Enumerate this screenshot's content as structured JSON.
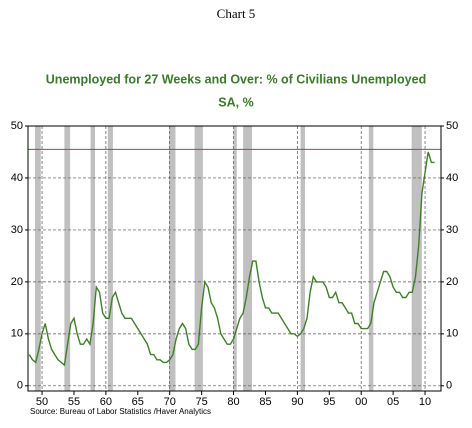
{
  "chart_data": {
    "type": "line",
    "header": "Chart 5",
    "title": "Unemployed for 27 Weeks and Over: % of Civilians Unemployed",
    "subtitle": "SA, %",
    "source": "Source:  Bureau of Labor Statistics /Haver Analytics",
    "x": [
      1948,
      1948.5,
      1949,
      1949.5,
      1950,
      1950.5,
      1951,
      1951.5,
      1952,
      1952.5,
      1953,
      1953.5,
      1954,
      1954.5,
      1955,
      1955.5,
      1956,
      1956.5,
      1957,
      1957.5,
      1958,
      1958.5,
      1959,
      1959.5,
      1960,
      1960.5,
      1961,
      1961.5,
      1962,
      1962.5,
      1963,
      1963.5,
      1964,
      1964.5,
      1965,
      1965.5,
      1966,
      1966.5,
      1967,
      1967.5,
      1968,
      1968.5,
      1969,
      1969.5,
      1970,
      1970.5,
      1971,
      1971.5,
      1972,
      1972.5,
      1973,
      1973.5,
      1974,
      1974.5,
      1975,
      1975.5,
      1976,
      1976.5,
      1977,
      1977.5,
      1978,
      1978.5,
      1979,
      1979.5,
      1980,
      1980.5,
      1981,
      1981.5,
      1982,
      1982.5,
      1983,
      1983.5,
      1984,
      1984.5,
      1985,
      1985.5,
      1986,
      1986.5,
      1987,
      1987.5,
      1988,
      1988.5,
      1989,
      1989.5,
      1990,
      1990.5,
      1991,
      1991.5,
      1992,
      1992.5,
      1993,
      1993.5,
      1994,
      1994.5,
      1995,
      1995.5,
      1996,
      1996.5,
      1997,
      1997.5,
      1998,
      1998.5,
      1999,
      1999.5,
      2000,
      2000.5,
      2001,
      2001.5,
      2002,
      2002.5,
      2003,
      2003.5,
      2004,
      2004.5,
      2005,
      2005.5,
      2006,
      2006.5,
      2007,
      2007.5,
      2008,
      2008.5,
      2009,
      2009.5,
      2010,
      2010.5,
      2011,
      2011.5
    ],
    "series": [
      {
        "name": "Unemployed for 27 Weeks and Over",
        "color": "#3f7f2a",
        "values": [
          6,
          5,
          4.5,
          7,
          10,
          12,
          9,
          7,
          6,
          5,
          4.5,
          4,
          8,
          12,
          13,
          10,
          8,
          8,
          9,
          8,
          12,
          19,
          18,
          14,
          13,
          13,
          17,
          18,
          16,
          14,
          13,
          13,
          13,
          12,
          11,
          10,
          9,
          8,
          6,
          6,
          5,
          5,
          4.5,
          4.5,
          5,
          6,
          9,
          11,
          12,
          11,
          8,
          7,
          7,
          8,
          15,
          20,
          19,
          16,
          15,
          13,
          10,
          9,
          8,
          8,
          9,
          11,
          13,
          14,
          17,
          21,
          24,
          24,
          20,
          17,
          15,
          15,
          14,
          14,
          14,
          13,
          12,
          11,
          10,
          10,
          9.5,
          10,
          11,
          13,
          18,
          21,
          20,
          20,
          20,
          19,
          17,
          17,
          18,
          16,
          16,
          15,
          14,
          14,
          12,
          12,
          11,
          11,
          11,
          12,
          16,
          18,
          20,
          22,
          22,
          21,
          19,
          18,
          18,
          17,
          17,
          18,
          18,
          21,
          27,
          37,
          41,
          45,
          43,
          43
        ]
      }
    ],
    "recessions": [
      [
        1948.9,
        1949.8
      ],
      [
        1953.5,
        1954.4
      ],
      [
        1957.6,
        1958.3
      ],
      [
        1960.3,
        1961.1
      ],
      [
        1969.9,
        1970.9
      ],
      [
        1973.9,
        1975.2
      ],
      [
        1980,
        1980.5
      ],
      [
        1981.5,
        1982.9
      ],
      [
        1990.5,
        1991.2
      ],
      [
        2001.2,
        2001.9
      ],
      [
        2007.9,
        2009.5
      ]
    ],
    "hline": 45.5,
    "xlim": [
      1947.8,
      2012.5
    ],
    "xticks": [
      {
        "value": 1950,
        "label": "50"
      },
      {
        "value": 1955,
        "label": "55"
      },
      {
        "value": 1960,
        "label": "60"
      },
      {
        "value": 1965,
        "label": "65"
      },
      {
        "value": 1970,
        "label": "70"
      },
      {
        "value": 1975,
        "label": "75"
      },
      {
        "value": 1980,
        "label": "80"
      },
      {
        "value": 1985,
        "label": "85"
      },
      {
        "value": 1990,
        "label": "90"
      },
      {
        "value": 1995,
        "label": "95"
      },
      {
        "value": 2000,
        "label": "00"
      },
      {
        "value": 2005,
        "label": "05"
      },
      {
        "value": 2010,
        "label": "10"
      }
    ],
    "grid_xticks": [
      1950,
      1960,
      1970,
      1980,
      1990,
      2000,
      2010
    ],
    "ylim": [
      -1,
      50
    ],
    "yticks": [
      0,
      10,
      20,
      30,
      40,
      50
    ],
    "grid": true
  }
}
